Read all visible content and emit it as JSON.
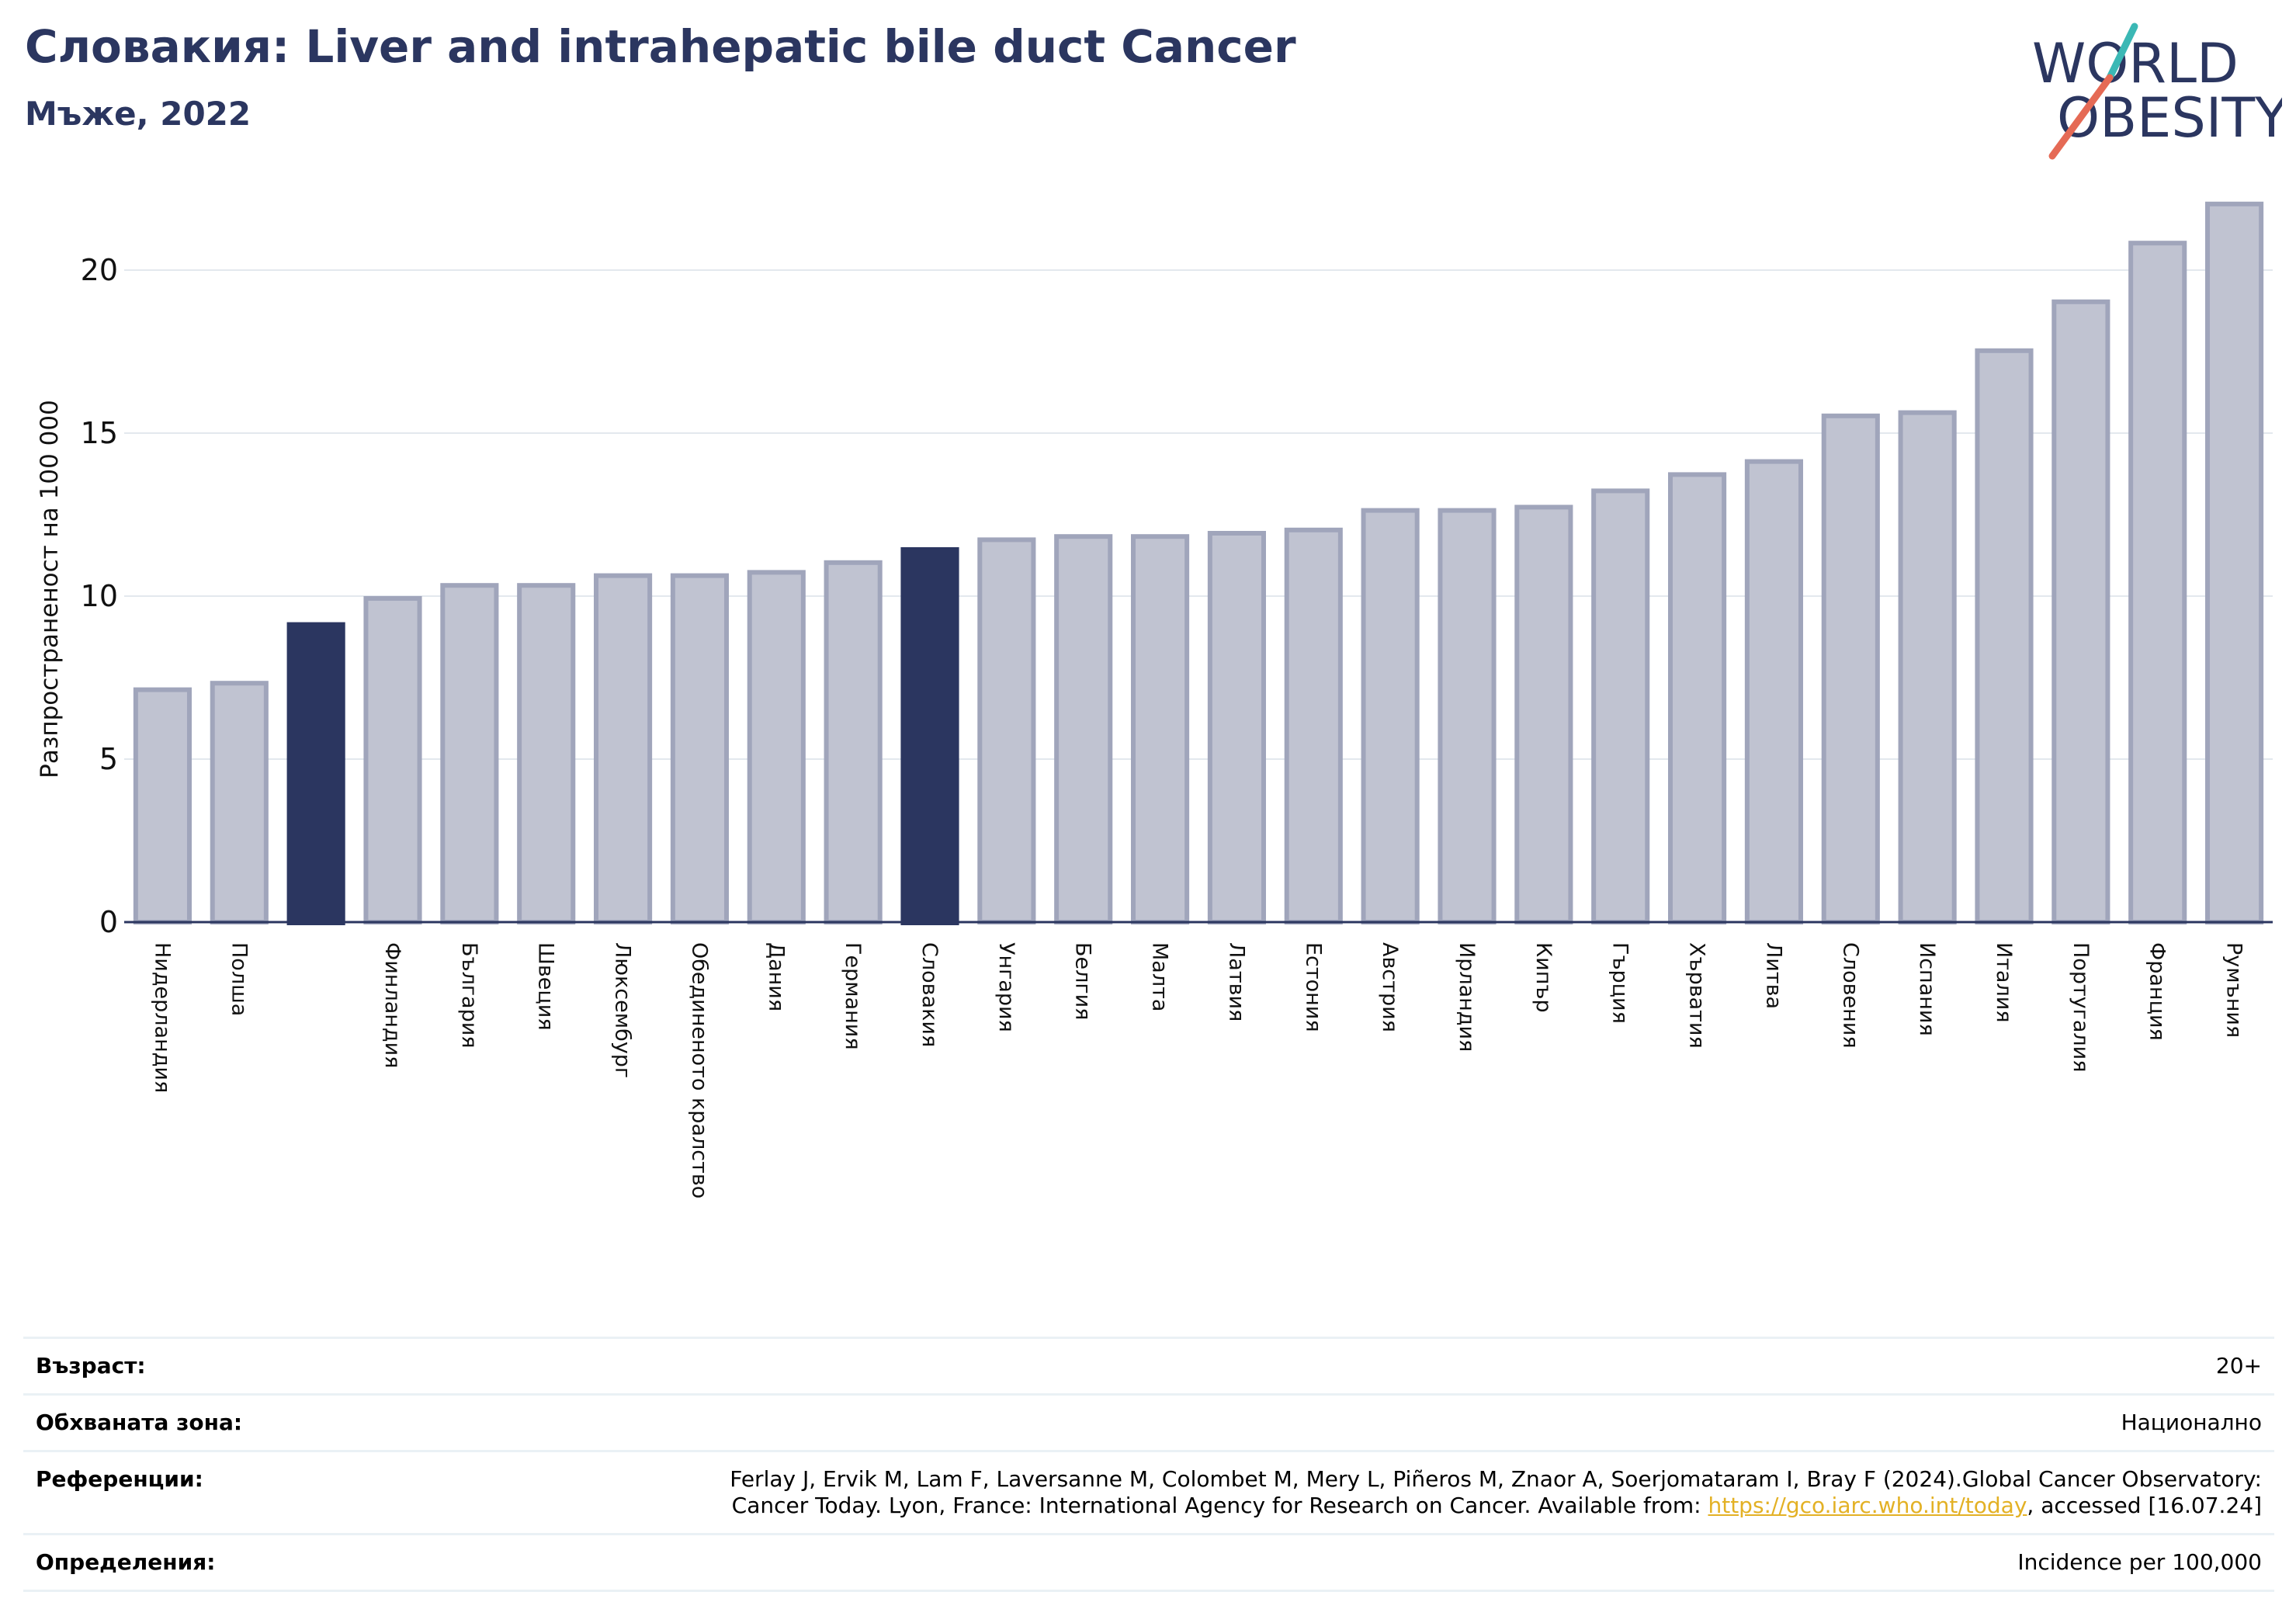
{
  "header": {
    "title": "Словакия: Liver and intrahepatic bile duct Cancer",
    "subtitle": "Мъже, 2022"
  },
  "logo": {
    "line1": "WORLD",
    "line2": "OBESITY"
  },
  "colors": {
    "highlight": "#2b3660",
    "bar_fill": "#c0c3d1",
    "bar_stroke": "#a0a5bb",
    "logo_teal": "#3bb8b5",
    "logo_coral": "#e56a55"
  },
  "chart_data": {
    "type": "bar",
    "ylabel": "Разпространеност  на 100 000",
    "xlabel": "",
    "ylim": [
      0,
      22.5
    ],
    "yticks": [
      0,
      5,
      10,
      15,
      20
    ],
    "grid": true,
    "categories": [
      "Нидерландия",
      "Полша",
      "",
      "Финландия",
      "България",
      "Швеция",
      "Люксембург",
      "Обединеното кралство",
      "Дания",
      "Германия",
      "Словакия",
      "Унгария",
      "Белгия",
      "Малта",
      "Латвия",
      "Естония",
      "Австрия",
      "Ирландия",
      "Кипър",
      "Гърция",
      "Хърватия",
      "Литва",
      "Словения",
      "Испания",
      "Италия",
      "Португалия",
      "Франция",
      "Румъния"
    ],
    "values": [
      7.2,
      7.4,
      9.2,
      10.0,
      10.4,
      10.4,
      10.7,
      10.7,
      10.8,
      11.1,
      11.5,
      11.8,
      11.9,
      11.9,
      12.0,
      12.1,
      12.7,
      12.7,
      12.8,
      13.3,
      13.8,
      14.2,
      15.6,
      15.7,
      17.6,
      19.1,
      20.9,
      22.1
    ],
    "highlighted": [
      2,
      10
    ]
  },
  "info": {
    "age_label": "Възраст:",
    "age_value": "20+",
    "area_label": "Обхваната зона:",
    "area_value": "Национално",
    "ref_label": "Референции:",
    "ref_line1": "Ferlay J, Ervik M, Lam F, Laversanne M, Colombet M, Mery L, Piñeros M, Znaor A, Soerjomataram I, Bray F (2024).Global Cancer Observatory:",
    "ref_line2_prefix": "Cancer Today. Lyon, France: International Agency for Research on Cancer. Available from: ",
    "ref_link": "https://gco.iarc.who.int/today",
    "ref_line2_suffix": ", accessed [16.07.24]",
    "def_label": "Определения:",
    "def_value": "Incidence per 100,000"
  }
}
